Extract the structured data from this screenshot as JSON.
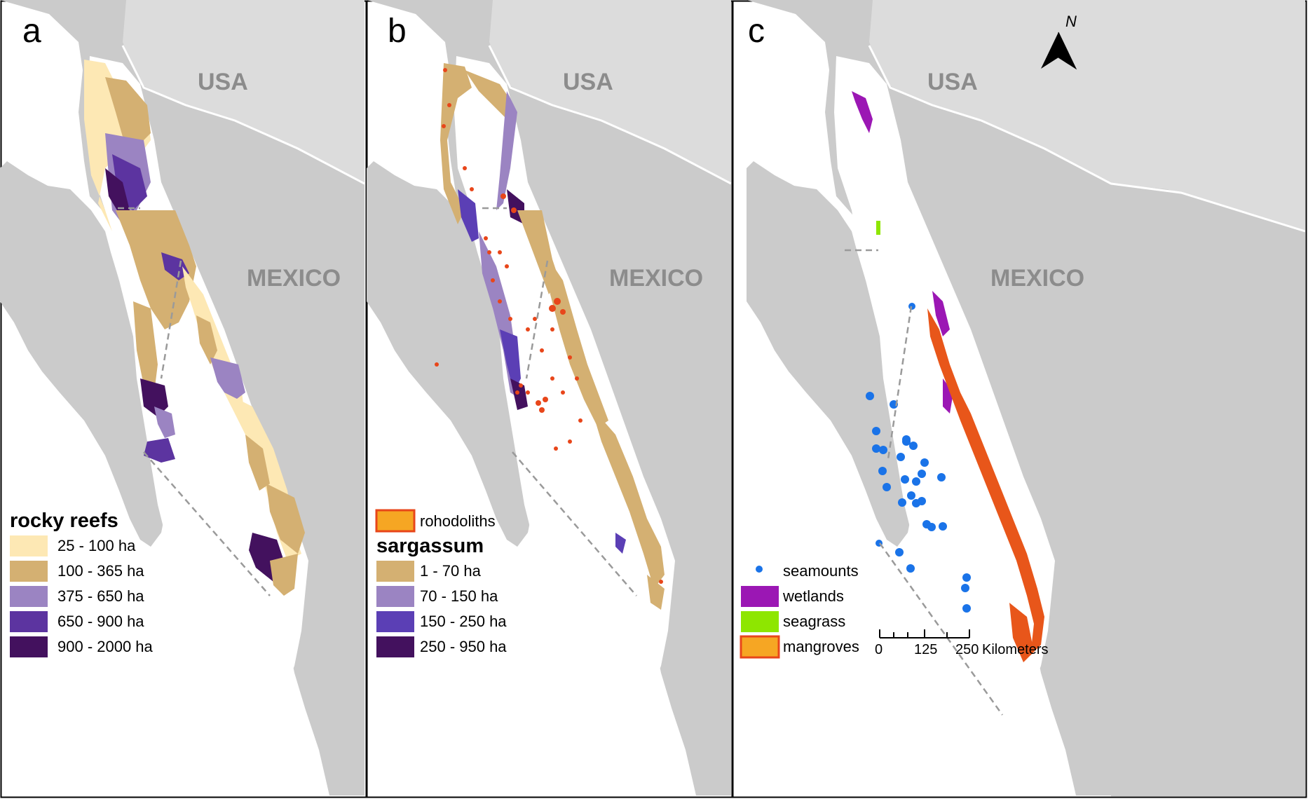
{
  "panels": [
    {
      "letter": "a",
      "country_north": "USA",
      "country_south": "MEXICO",
      "legend_title": "rocky reefs",
      "legend_items": [
        {
          "label": "25 - 100 ha",
          "color": "#fde8b4"
        },
        {
          "label": "100 - 365 ha",
          "color": "#d4b072"
        },
        {
          "label": "375 - 650 ha",
          "color": "#9b84c2"
        },
        {
          "label": "650 - 900 ha",
          "color": "#5c34a0"
        },
        {
          "label": "900 - 2000 ha",
          "color": "#43115e"
        }
      ]
    },
    {
      "letter": "b",
      "country_north": "USA",
      "country_south": "MEXICO",
      "legend_top_item": {
        "label": "rohodoliths",
        "color": "#f6a623",
        "border": "#e8461a"
      },
      "legend_title": "sargassum",
      "legend_items": [
        {
          "label": "1 - 70 ha",
          "color": "#d4b072"
        },
        {
          "label": "70 - 150 ha",
          "color": "#9b84c2"
        },
        {
          "label": "150 - 250 ha",
          "color": "#5b3fb5"
        },
        {
          "label": "250 - 950 ha",
          "color": "#43115e"
        }
      ]
    },
    {
      "letter": "c",
      "country_north": "USA",
      "country_south": "MEXICO",
      "north_label": "N",
      "legend_items": [
        {
          "label": "seamounts",
          "color": "#1a73e8",
          "kind": "dot"
        },
        {
          "label": "wetlands",
          "color": "#9b17b4",
          "kind": "box"
        },
        {
          "label": "seagrass",
          "color": "#8ee600",
          "kind": "box"
        },
        {
          "label": "mangroves",
          "color": "#f6a623",
          "border": "#e8461a",
          "kind": "box"
        }
      ],
      "scalebar": {
        "ticks": [
          "0",
          "125",
          "250"
        ],
        "unit": "Kilometers"
      }
    }
  ],
  "colors": {
    "land": "#cbcbcb",
    "usa_land": "#dcdcdc",
    "sea": "#ffffff",
    "border_line": "#ffffff",
    "rhodolith_dot": "#e8461a",
    "mangrove_fill": "#e8561a",
    "wetland_fill": "#9b17b4",
    "seagrass_fill": "#8ee600",
    "seamount_dot": "#1a73e8"
  }
}
